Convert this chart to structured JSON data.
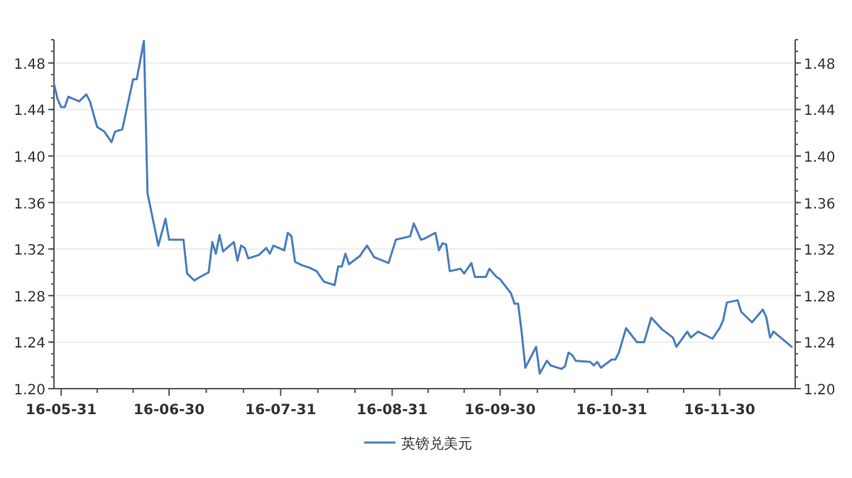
{
  "chart_data": {
    "type": "line",
    "x": [
      "--05-29",
      "--05-30",
      "--05-31",
      "--06-01",
      "--06-02",
      "--06-05",
      "--06-07",
      "--06-08",
      "--06-10",
      "--06-12",
      "--06-14",
      "--06-15",
      "--06-17",
      "--06-20",
      "--06-21",
      "--06-23",
      "--06-24",
      "--06-27",
      "--06-29",
      "--06-30",
      "--07-04",
      "--07-05",
      "--07-07",
      "--07-08",
      "--07-11",
      "--07-12",
      "--07-13",
      "--07-14",
      "--07-15",
      "--07-18",
      "--07-19",
      "--07-20",
      "--07-21",
      "--07-22",
      "--07-25",
      "--07-27",
      "--07-28",
      "--07-29",
      "--08-01",
      "--08-02",
      "--08-03",
      "--08-04",
      "--08-06",
      "--08-08",
      "--08-10",
      "--08-12",
      "--08-15",
      "--08-16",
      "--08-17",
      "--08-18",
      "--08-19",
      "--08-22",
      "--08-24",
      "--08-26",
      "--08-30",
      "--09-01",
      "--09-05",
      "--09-06",
      "--09-08",
      "--09-09",
      "--09-12",
      "--09-13",
      "--09-14",
      "--09-15",
      "--09-16",
      "--09-19",
      "--09-20",
      "--09-22",
      "--09-23",
      "--09-26",
      "--09-27",
      "--09-29",
      "--09-30",
      "--10-03",
      "--10-04",
      "--10-05",
      "--10-06",
      "--10-07",
      "--10-10",
      "--10-11",
      "--10-13",
      "--10-14",
      "--10-17",
      "--10-18",
      "--10-19",
      "--10-20",
      "--10-21",
      "--10-25",
      "--10-26",
      "--10-27",
      "--10-28",
      "--10-31",
      "--11-01",
      "--11-02",
      "--11-04",
      "--11-07",
      "--11-09",
      "--11-11",
      "--11-14",
      "--11-17",
      "--11-18",
      "--11-21",
      "--11-22",
      "--11-24",
      "--11-28",
      "--11-30",
      "--12-01",
      "--12-02",
      "--12-05",
      "--12-06",
      "--12-09",
      "--12-12",
      "--12-13",
      "--12-14",
      "--12-15",
      "--12-20"
    ],
    "series": [
      {
        "name": "英镑兑美元",
        "color": "#4a7ebf",
        "values": [
          1.462,
          1.449,
          1.442,
          1.442,
          1.451,
          1.447,
          1.453,
          1.447,
          1.425,
          1.421,
          1.412,
          1.421,
          1.423,
          1.466,
          1.466,
          1.499,
          1.368,
          1.323,
          1.346,
          1.328,
          1.328,
          1.299,
          1.293,
          1.295,
          1.3,
          1.326,
          1.316,
          1.332,
          1.318,
          1.326,
          1.31,
          1.323,
          1.321,
          1.312,
          1.315,
          1.321,
          1.316,
          1.323,
          1.319,
          1.334,
          1.331,
          1.309,
          1.306,
          1.304,
          1.301,
          1.292,
          1.289,
          1.305,
          1.305,
          1.316,
          1.307,
          1.314,
          1.323,
          1.313,
          1.308,
          1.328,
          1.331,
          1.342,
          1.328,
          1.329,
          1.334,
          1.319,
          1.325,
          1.324,
          1.301,
          1.303,
          1.299,
          1.308,
          1.296,
          1.296,
          1.303,
          1.296,
          1.294,
          1.282,
          1.273,
          1.273,
          1.248,
          1.218,
          1.236,
          1.213,
          1.224,
          1.22,
          1.217,
          1.219,
          1.231,
          1.229,
          1.224,
          1.223,
          1.22,
          1.223,
          1.218,
          1.225,
          1.225,
          1.231,
          1.252,
          1.24,
          1.24,
          1.261,
          1.251,
          1.244,
          1.236,
          1.249,
          1.244,
          1.249,
          1.243,
          1.252,
          1.259,
          1.274,
          1.276,
          1.266,
          1.257,
          1.268,
          1.261,
          1.244,
          1.249,
          1.236
        ]
      }
    ],
    "xlim": [
      "--05-29",
      "--12-21"
    ],
    "xticks": [
      {
        "value": "--05-31",
        "label": "16-05-31"
      },
      {
        "value": "--06-30",
        "label": "16-06-30"
      },
      {
        "value": "--07-31",
        "label": "16-07-31"
      },
      {
        "value": "--08-31",
        "label": "16-08-31"
      },
      {
        "value": "--09-30",
        "label": "16-09-30"
      },
      {
        "value": "--10-31",
        "label": "16-10-31"
      },
      {
        "value": "--11-30",
        "label": "16-11-30"
      }
    ],
    "ylim": [
      1.2,
      1.5
    ],
    "yticks": [
      {
        "value": 1.2,
        "label": "1.20"
      },
      {
        "value": 1.24,
        "label": "1.24"
      },
      {
        "value": 1.28,
        "label": "1.28"
      },
      {
        "value": 1.32,
        "label": "1.32"
      },
      {
        "value": 1.36,
        "label": "1.36"
      },
      {
        "value": 1.4,
        "label": "1.40"
      },
      {
        "value": 1.44,
        "label": "1.44"
      },
      {
        "value": 1.48,
        "label": "1.48"
      }
    ],
    "y2lim": [
      1.2,
      1.5
    ],
    "y2ticks": [
      {
        "value": 1.2,
        "label": "1.20"
      },
      {
        "value": 1.24,
        "label": "1.24"
      },
      {
        "value": 1.28,
        "label": "1.28"
      },
      {
        "value": 1.32,
        "label": "1.32"
      },
      {
        "value": 1.36,
        "label": "1.36"
      },
      {
        "value": 1.4,
        "label": "1.40"
      },
      {
        "value": 1.44,
        "label": "1.44"
      },
      {
        "value": 1.48,
        "label": "1.48"
      }
    ],
    "grid": "y",
    "legend": "bottom",
    "marker": "none",
    "line_style": "solid"
  }
}
